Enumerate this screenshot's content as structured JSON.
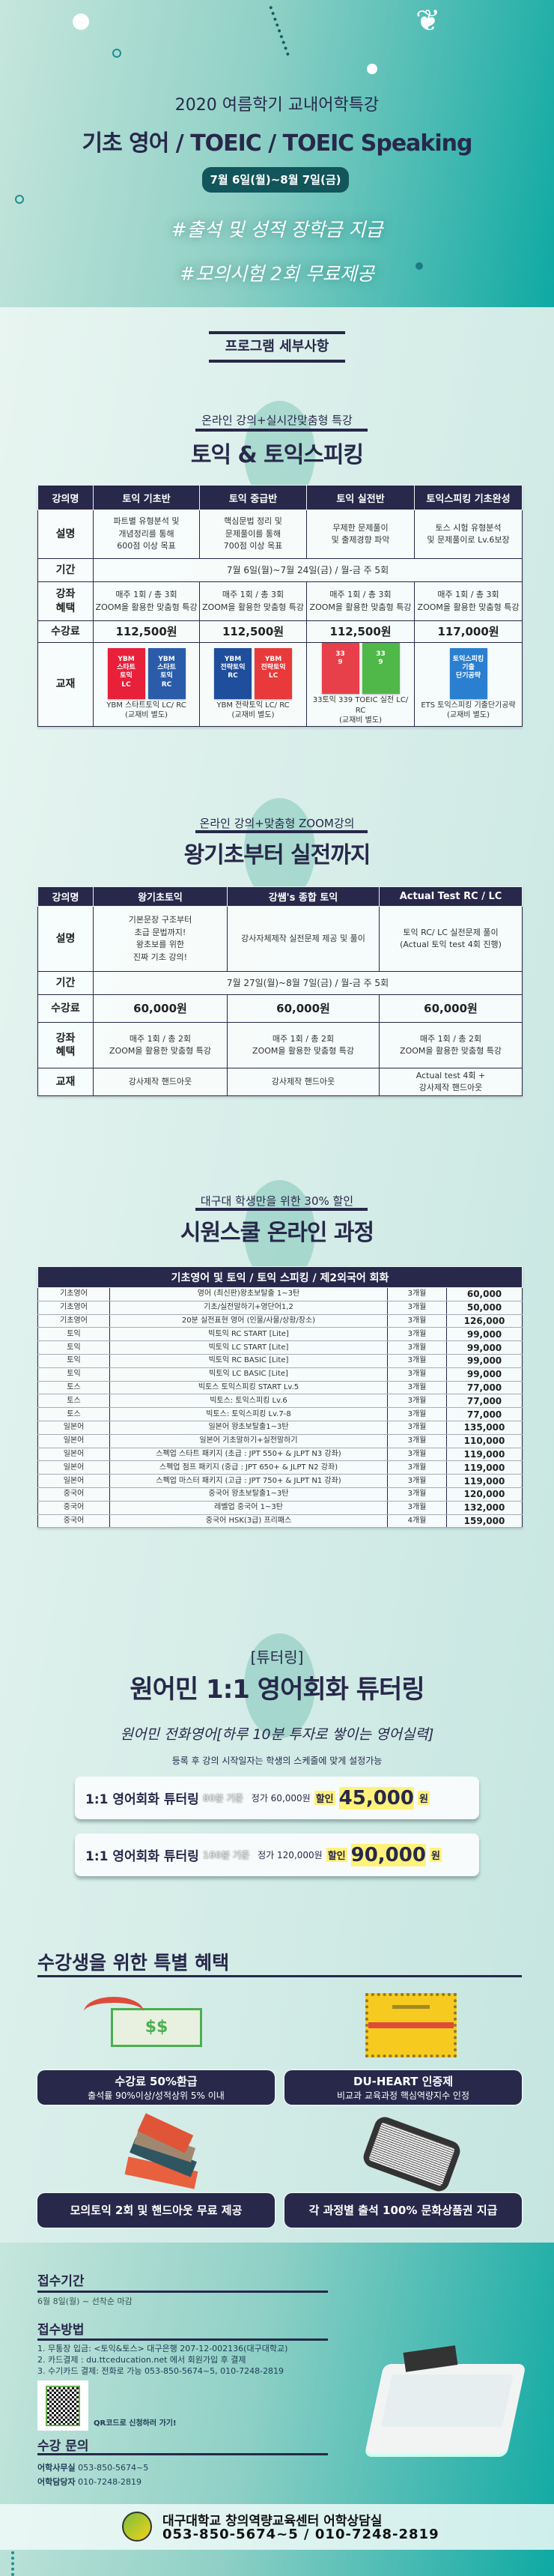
{
  "hero": {
    "subtitle": "2020 여름학기 교내어학특강",
    "title": "기초 영어 / TOEIC / TOEIC Speaking",
    "dates": "7월 6일(월)~8월 7일(금)",
    "hashtags": [
      "#출석 및 성적 장학금 지급",
      "#모의시험 2회 무료제공"
    ]
  },
  "program_heading": "프로그램 세부사항",
  "colors": {
    "navy": "#27284a",
    "teal": "#0fa9a3",
    "highlight": "#fff27a"
  },
  "sec1": {
    "subtitle": "온라인 강의+실시간맞춤형 특강",
    "title": "토익 & 토익스피킹",
    "table": {
      "headers": [
        "강의명",
        "토익 기초반",
        "토익 중급반",
        "토익 실전반",
        "토익스피킹 기초완성"
      ],
      "rows": [
        {
          "label": "설명",
          "cells": [
            "파트별 유형분석 및\n개념정리를 통해\n600점 이상 목표",
            "핵심문법 정리 및\n문제풀이를 통해\n700점 이상 목표",
            "무제한 문제풀이\n및 출제경향 파악",
            "토스 시험 유형분석\n및 문제풀이로 Lv.6보장"
          ]
        },
        {
          "label": "기간",
          "span": "7월 6일(월)~7월 24일(금) / 월-금  주 5회"
        },
        {
          "label": "강좌\n혜택",
          "cells": [
            "매주 1회 / 총 3회\nZOOM을 활용한 맞춤형 특강",
            "매주 1회 / 총 3회\nZOOM을 활용한 맞춤형 특강",
            "매주 1회 / 총 3회\nZOOM을 활용한 맞춤형 특강",
            "매주 1회 / 총 3회\nZOOM을 활용한 맞춤형 특강"
          ],
          "cls": ""
        },
        {
          "label": "수강료",
          "cells": [
            "112,500원",
            "112,500원",
            "112,500원",
            "117,000원"
          ],
          "cls": "price"
        },
        {
          "label": "교재",
          "books": [
            {
              "covers": [
                {
                  "color": "#e8203a",
                  "text": "YBM\n스타트\n토익\nLC"
                },
                {
                  "color": "#2a5caa",
                  "text": "YBM\n스타트\n토익\nRC"
                }
              ],
              "caption": "YBM 스타트토익 LC/ RC\n(교재비 별도)"
            },
            {
              "covers": [
                {
                  "color": "#1f4e9c",
                  "text": "YBM\n전략토익\nRC"
                },
                {
                  "color": "#e83a3a",
                  "text": "YBM\n전략토익\nLC"
                }
              ],
              "caption": "YBM 전략토익 LC/ RC\n(교재비 별도)"
            },
            {
              "covers": [
                {
                  "color": "#e8404a",
                  "text": "33\n9"
                },
                {
                  "color": "#4fb848",
                  "text": "33\n9"
                }
              ],
              "caption": "33토익 339 TOEIC 실전 LC/ RC\n(교재비 별도)"
            },
            {
              "covers": [
                {
                  "color": "#2a7fd0",
                  "text": "토익스피킹\n기출\n단기공략"
                }
              ],
              "caption": "ETS 토익스피킹 기출단기공략\n(교재비 별도)"
            }
          ]
        }
      ]
    }
  },
  "sec2": {
    "subtitle": "온라인 강의+맞춤형 ZOOM강의",
    "title": "왕기초부터 실전까지",
    "table": {
      "headers": [
        "강의명",
        "왕기초토익",
        "강쌤's 종합 토익",
        "Actual Test RC / LC"
      ],
      "rows": [
        {
          "label": "설명",
          "cells": [
            "기본문장 구조부터\n초급 문법까지!\n왕초보를 위한\n진짜 기초 강의!",
            "강사자체제작 실전문제 제공 및 풀이",
            "토익 RC/ LC 실전문제 풀이\n(Actual 토익 test 4회 진행)"
          ]
        },
        {
          "label": "기간",
          "span": "7월 27일(월)~8월 7일(금) / 월-금  주 5회"
        },
        {
          "label": "수강료",
          "cells": [
            "60,000원",
            "60,000원",
            "60,000원"
          ],
          "cls": "price"
        },
        {
          "label": "강좌\n혜택",
          "cells": [
            "매주 1회 / 총 2회\nZOOM을 활용한 맞춤형 특강",
            "매주 1회 / 총 2회\nZOOM을 활용한 맞춤형 특강",
            "매주 1회 / 총 2회\nZOOM을 활용한 맞춤형 특강"
          ]
        },
        {
          "label": "교재",
          "cells": [
            "강사제작 핸드아웃",
            "강사제작 핸드아웃",
            "Actual test 4회 +\n강사제작 핸드아웃"
          ]
        }
      ]
    }
  },
  "sec3": {
    "subtitle": "대구대 학생만을 위한 30% 할인",
    "title": "시원스쿨 온라인 과정",
    "table": {
      "header": "기초영어 및 토익 / 토익 스피킹 / 제2외국어 회화",
      "rows": [
        [
          "기초영어",
          "영어 (최신판)왕초보탈출 1~3탄",
          "3개월",
          "60,000"
        ],
        [
          "기초영어",
          "기초/실전말하기+영단어1,2",
          "3개월",
          "50,000"
        ],
        [
          "기초영어",
          "20분 실전표현 영어 (인물/사물/상황/장소)",
          "3개월",
          "126,000"
        ],
        [
          "토익",
          "빅토익 RC START [Lite]",
          "3개월",
          "99,000"
        ],
        [
          "토익",
          "빅토익 LC START [Lite]",
          "3개월",
          "99,000"
        ],
        [
          "토익",
          "빅토익 RC BASIC [Lite]",
          "3개월",
          "99,000"
        ],
        [
          "토익",
          "빅토익 LC BASIC [Lite]",
          "3개월",
          "99,000"
        ],
        [
          "토스",
          "빅토스 토익스피킹 START Lv.5",
          "3개월",
          "77,000"
        ],
        [
          "토스",
          "빅토스: 토익스피킹 Lv.6",
          "3개월",
          "77,000"
        ],
        [
          "토스",
          "빅토스: 토익스피킹 Lv.7-8",
          "3개월",
          "77,000"
        ],
        [
          "일본어",
          "일본어 왕초보탈출1~3탄",
          "3개월",
          "135,000"
        ],
        [
          "일본어",
          "일본어 기초말하기+실전말하기",
          "3개월",
          "110,000"
        ],
        [
          "일본어",
          "스펙업 스타트 패키지 (초급 : JPT 550+ & JLPT N3 강좌)",
          "3개월",
          "119,000"
        ],
        [
          "일본어",
          "스펙업 점프 패키지 (중급 : JPT 650+ & JLPT N2 강좌)",
          "3개월",
          "119,000"
        ],
        [
          "일본어",
          "스펙업 마스터 패키지 (고급 : JPT 750+ & JLPT N1 강좌)",
          "3개월",
          "119,000"
        ],
        [
          "중국어",
          "중국어 왕초보탈출1~3탄",
          "3개월",
          "120,000"
        ],
        [
          "중국어",
          "레벨업 중국어 1~3탄",
          "3개월",
          "132,000"
        ],
        [
          "중국어",
          "중국어 HSK(3급) 프리패스",
          "4개월",
          "159,000"
        ]
      ]
    }
  },
  "tutoring": {
    "tag": "[튜터링]",
    "title": "원어민 1:1 영어회화 튜터링",
    "slogan": "원어민 전화영어[하루 10분 투자로 쌓이는 영어실력]",
    "note": "등록 후 강의 시작일자는 학생의 스케줄에 맞게 설정가능",
    "plans": [
      {
        "name": "1:1 영어회화 튜터링",
        "basis": "80분 기준",
        "original": "정가 60,000원",
        "disc_label": "할인",
        "price": "45,000",
        "unit": "원"
      },
      {
        "name": "1:1 영어회화 튜터링",
        "basis": "160분 기준",
        "original": "정가 120,000원",
        "disc_label": "할인",
        "price": "90,000",
        "unit": "원"
      }
    ]
  },
  "benefits": {
    "title": "수강생을 위한 특별 혜택",
    "items": [
      {
        "title": "수강료 50%환급",
        "sub": "출석률 90%이상/성적상위 5% 이내",
        "icon": "money-refund-icon",
        "glyph": "$$"
      },
      {
        "title": "DU-HEART 인증제",
        "sub": "비교과 교육과정 핵심역량지수 인정",
        "icon": "certificate-icon"
      },
      {
        "title": "모의토익 2회 및 핸드아웃 무료 제공",
        "icon": "books-icon"
      },
      {
        "title": "각 과정별 출석 100% 문화상품권 지급",
        "icon": "tablet-icon"
      }
    ]
  },
  "apply": {
    "period_title": "접수기간",
    "period": "6월 8일(월) ~ 선착순 마감",
    "method_title": "접수방법",
    "methods": [
      "1. 무통장 입금: <토익&토스> 대구은행 207-12-002136(대구대학교)",
      "2. 카드결제 : du.ttceducation.net 에서 회원가입 후 결제",
      "3. 수기카드 결제: 전화로 가능 053-850-5674~5, 010-7248-2819"
    ],
    "qr_text": "QR코드로 신청하러 가기!",
    "qr_logo_text": "대구대학교",
    "contact_title": "수강 문의",
    "contacts": [
      {
        "label": "어학사무실",
        "value": "053-850-5674~5"
      },
      {
        "label": "어학담당자",
        "value": "010-7248-2819"
      }
    ]
  },
  "footer": {
    "org": "대구대학교 창의역량교육센터 어학상담실",
    "phones": "053-850-5674~5 / 010-7248-2819",
    "seal_text": "DAEGU UNIVERSITY 1956"
  }
}
